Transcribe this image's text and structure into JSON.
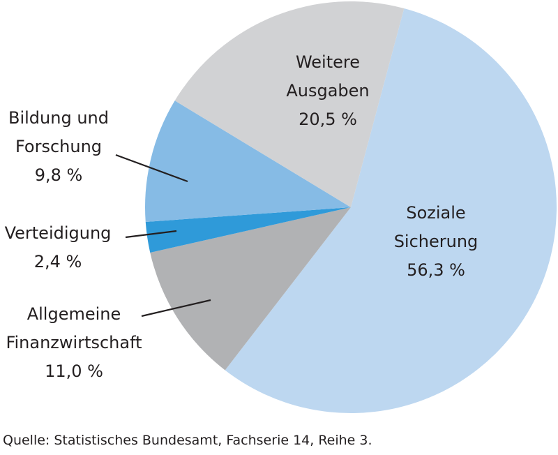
{
  "chart_data": {
    "type": "pie",
    "title": "",
    "unit": "%",
    "start_angle_deg": 15,
    "direction": "clockwise",
    "slices": [
      {
        "label": "Soziale Sicherung",
        "label_lines": [
          "Soziale",
          "Sicherung"
        ],
        "value": 56.3,
        "value_text": "56,3 %",
        "color": "#bdd7f0"
      },
      {
        "label": "Allgemeine Finanzwirtschaft",
        "label_lines": [
          "Allgemeine",
          "Finanzwirtschaft"
        ],
        "value": 11.0,
        "value_text": "11,0 %",
        "color": "#b1b2b4"
      },
      {
        "label": "Verteidigung",
        "label_lines": [
          "Verteidigung"
        ],
        "value": 2.4,
        "value_text": "2,4 %",
        "color": "#2f9ad9"
      },
      {
        "label": "Bildung und Forschung",
        "label_lines": [
          "Bildung und",
          "Forschung"
        ],
        "value": 9.8,
        "value_text": "9,8 %",
        "color": "#86bbe5"
      },
      {
        "label": "Weitere Ausgaben",
        "label_lines": [
          "Weitere",
          "Ausgaben"
        ],
        "value": 20.5,
        "value_text": "20,5 %",
        "color": "#d1d2d4"
      }
    ],
    "source": "Quelle: Statistisches Bundesamt, Fachserie 14, Reihe 3."
  },
  "labels": {
    "soziale": {
      "line1": "Soziale",
      "line2": "Sicherung",
      "value": "56,3 %"
    },
    "weitere": {
      "line1": "Weitere",
      "line2": "Ausgaben",
      "value": "20,5 %"
    },
    "bildung": {
      "line1": "Bildung und",
      "line2": "Forschung",
      "value": "9,8 %"
    },
    "verteidigung": {
      "line1": "Verteidigung",
      "value": "2,4 %"
    },
    "allgemeine": {
      "line1": "Allgemeine",
      "line2": "Finanzwirtschaft",
      "value": "11,0 %"
    }
  },
  "source": "Quelle: Statistisches Bundesamt, Fachserie 14, Reihe 3."
}
